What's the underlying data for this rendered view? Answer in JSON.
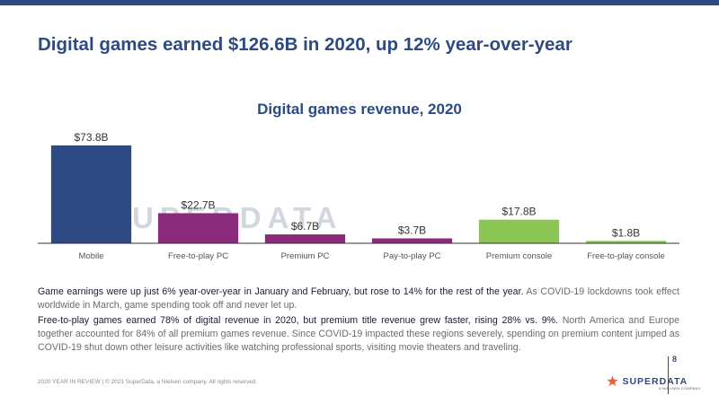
{
  "headline": "Digital games earned $126.6B in 2020, up 12% year-over-year",
  "watermark": "SUPERDATA",
  "paragraphs": [
    {
      "lead": "Game earnings were up just 6% year-over-year in January and February, but rose to 14% for the rest of the year.",
      "rest": " As COVID-19 lockdowns took effect worldwide in March, game spending took off and never let up."
    },
    {
      "lead": "Free-to-play games earned 78% of digital revenue in 2020, but premium title revenue grew faster, rising 28% vs. 9%.",
      "rest": " North America and Europe together accounted for 84% of all premium games revenue. Since COVID-19 impacted these regions severely, spending on premium content jumped as COVID-19 shut down other leisure activities like watching professional sports, visiting movie theaters and traveling."
    }
  ],
  "footer": {
    "note": "2020 YEAR IN REVIEW | © 2021 SuperData, a Nielsen company. All rights reserved.",
    "page_number": "8",
    "logo_text": "SUPERDATA",
    "logo_tagline": "A NIELSEN COMPANY"
  },
  "colors": {
    "brand_blue": "#2d4a84",
    "purple": "#8b2a7a",
    "green": "#8ac651",
    "logo_star": "#e8623a"
  },
  "chart_data": {
    "type": "bar",
    "title": "Digital games revenue, 2020",
    "categories": [
      "Mobile",
      "Free-to-play PC",
      "Premium PC",
      "Pay-to-play PC",
      "Premium console",
      "Free-to-play console"
    ],
    "values": [
      73.8,
      22.7,
      6.7,
      3.7,
      17.8,
      1.8
    ],
    "value_labels": [
      "$73.8B",
      "$22.7B",
      "$6.7B",
      "$3.7B",
      "$17.8B",
      "$1.8B"
    ],
    "bar_colors": [
      "#2d4a84",
      "#8b2a7a",
      "#8b2a7a",
      "#8b2a7a",
      "#8ac651",
      "#8ac651"
    ],
    "ylabel": "",
    "xlabel": "",
    "ylim": [
      0,
      73.8
    ],
    "grid": false,
    "legend": "none"
  }
}
